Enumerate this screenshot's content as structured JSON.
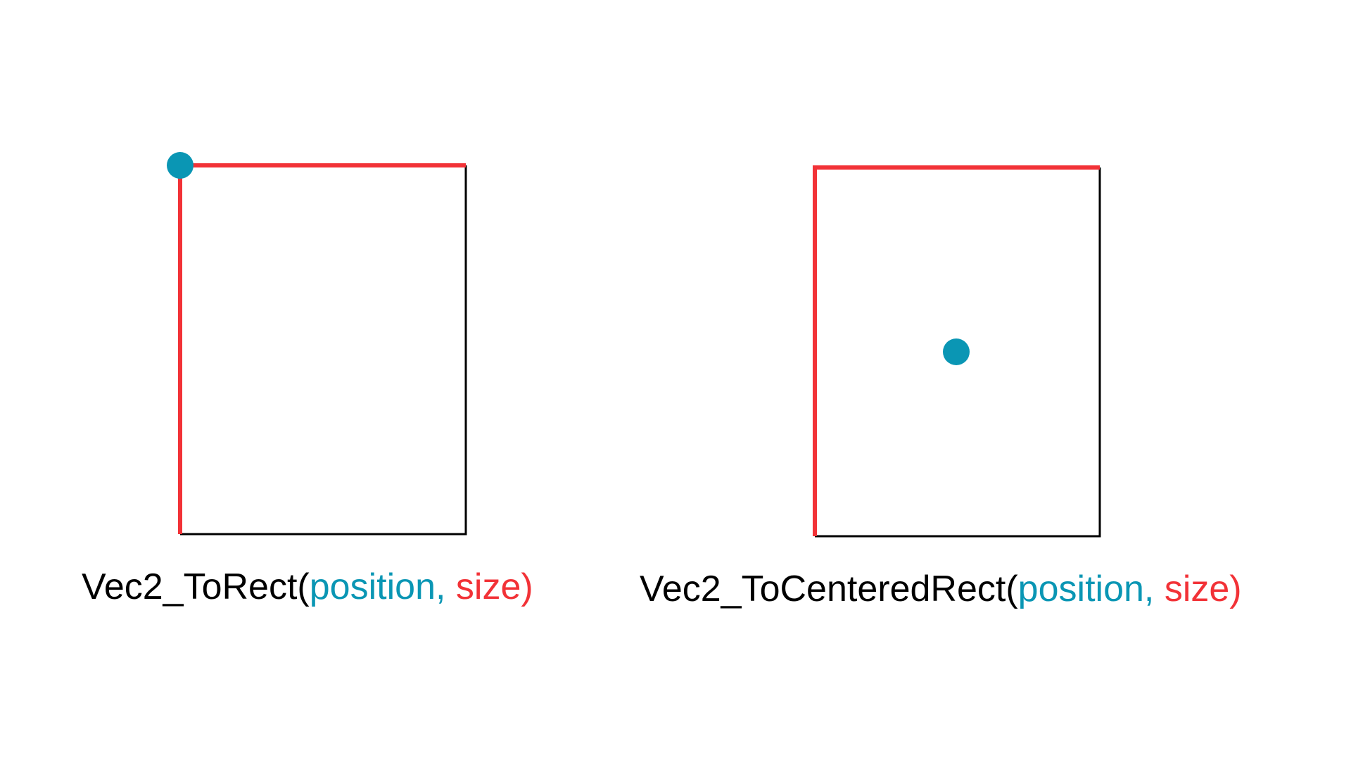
{
  "colors": {
    "background": "#ffffff",
    "text": "#000000",
    "position": "#0a96b4",
    "size": "#f23237",
    "outline": "#000000"
  },
  "panels": [
    {
      "anchor": "top-left corner",
      "caption": {
        "name": "Vec2_ToRect",
        "open_paren": "(",
        "position_arg": "position,",
        "size_arg": "size",
        "close_paren": ")"
      }
    },
    {
      "anchor": "center",
      "caption": {
        "name": "Vec2_ToCenteredRect",
        "open_paren": "(",
        "position_arg": "position,",
        "size_arg": "size",
        "close_paren": ")"
      }
    }
  ]
}
